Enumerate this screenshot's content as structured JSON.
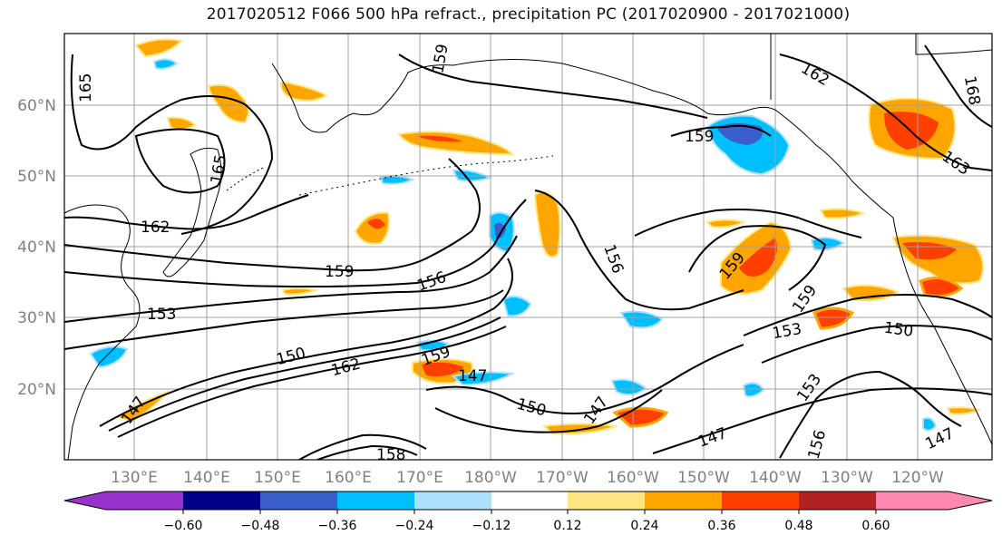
{
  "title": "2017020512 F066 500 hPa refract., precipitation PC (2017020900 - 2017021000)",
  "map": {
    "lat_labels": [
      "60°N",
      "50°N",
      "40°N",
      "30°N",
      "20°N"
    ],
    "lon_labels": [
      "130°E",
      "140°E",
      "150°E",
      "160°E",
      "170°E",
      "180°W",
      "170°W",
      "160°W",
      "150°W",
      "140°W",
      "130°W",
      "120°W"
    ],
    "contour_labels": [
      "165",
      "159",
      "162",
      "168",
      "163",
      "165",
      "162",
      "159",
      "156",
      "153",
      "150",
      "162",
      "159",
      "147",
      "156",
      "159",
      "150",
      "147",
      "147",
      "150",
      "153",
      "156",
      "147",
      "159",
      "147",
      "158",
      "153",
      "159"
    ]
  },
  "colorbar": {
    "tick_labels": [
      "−0.60",
      "−0.48",
      "−0.36",
      "−0.24",
      "−0.12",
      "0.12",
      "0.24",
      "0.36",
      "0.48",
      "0.60"
    ],
    "colors": [
      "#9932CC",
      "#00008B",
      "#3A5FCD",
      "#00BFFF",
      "#ADDFFF",
      "#FFFFFF",
      "#FFE680",
      "#FFA500",
      "#FF3F00",
      "#B22222",
      "#FF88B0"
    ]
  }
}
